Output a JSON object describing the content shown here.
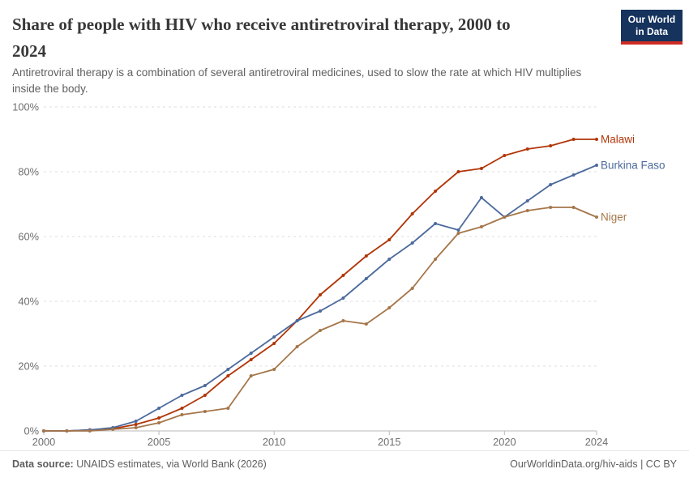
{
  "brand": {
    "logo_line1": "Our World",
    "logo_line2": "in Data",
    "logo_bg": "#15335D",
    "logo_accent": "#CF2C24"
  },
  "header": {
    "title_lines": [
      "Share of people with HIV who receive antiretroviral therapy, 2000 to",
      "2024"
    ],
    "subtitle_lines": [
      "Antiretroviral therapy is a combination of several antiretroviral medicines, used to slow the rate at which HIV multiplies",
      "inside the body."
    ]
  },
  "chart_data": {
    "type": "line",
    "title": "Share of people with HIV who receive antiretroviral therapy, 2000 to 2024",
    "xlabel": "",
    "ylabel": "",
    "ylim": [
      0,
      100
    ],
    "grid": "horizontal-dashed",
    "legend_position": "end-of-line-labels",
    "x": [
      2000,
      2001,
      2002,
      2003,
      2004,
      2005,
      2006,
      2007,
      2008,
      2009,
      2010,
      2011,
      2012,
      2013,
      2014,
      2015,
      2016,
      2017,
      2018,
      2019,
      2020,
      2021,
      2022,
      2023,
      2024
    ],
    "x_ticks": [
      2000,
      2005,
      2010,
      2015,
      2020,
      2024
    ],
    "y_ticks": [
      0,
      20,
      40,
      60,
      80,
      100
    ],
    "y_tick_labels": [
      "0%",
      "20%",
      "40%",
      "60%",
      "80%",
      "100%"
    ],
    "series": [
      {
        "name": "Malawi",
        "color": "#B13507",
        "values": [
          0,
          0,
          0.3,
          0.7,
          2,
          4,
          7,
          11,
          17,
          22,
          27,
          34,
          42,
          48,
          54,
          59,
          67,
          74,
          80,
          81,
          85,
          87,
          88,
          90,
          90
        ]
      },
      {
        "name": "Burkina Faso",
        "color": "#4C6A9C",
        "values": [
          0,
          0,
          0.3,
          1,
          3,
          7,
          11,
          14,
          19,
          24,
          29,
          34,
          37,
          41,
          47,
          53,
          58,
          64,
          62,
          72,
          66,
          71,
          76,
          79,
          82
        ]
      },
      {
        "name": "Niger",
        "color": "#A5764A",
        "values": [
          0,
          0,
          0,
          0.5,
          1,
          2.5,
          5,
          6,
          7,
          17,
          19,
          26,
          31,
          34,
          33,
          38,
          44,
          53,
          61,
          63,
          66,
          68,
          69,
          69,
          66
        ]
      }
    ]
  },
  "footer": {
    "source_label": "Data source:",
    "source_text": "UNAIDS estimates, via World Bank (2026)",
    "credit": "OurWorldinData.org/hiv-aids | CC BY"
  }
}
